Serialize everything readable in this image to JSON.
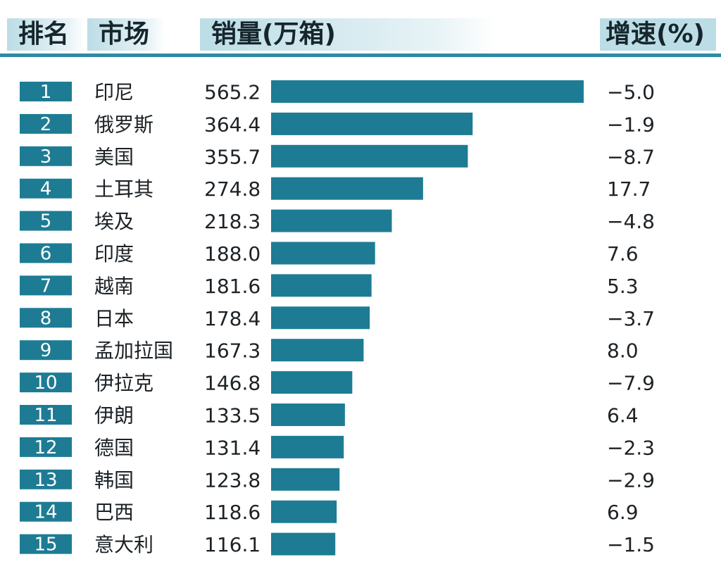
{
  "header": {
    "rank": "排名",
    "market": "市场",
    "sales": "销量(万箱)",
    "growth": "增速(%)"
  },
  "colors": {
    "bar": "#1d7c93",
    "rank_box": "#1d7c93",
    "header_band": "#bcdde6",
    "rule": "#2e8aa6"
  },
  "chart_data": {
    "type": "bar",
    "orientation": "horizontal",
    "value_range": [
      0,
      565.2
    ],
    "rows": [
      {
        "rank": "1",
        "market": "印尼",
        "sales": 565.2,
        "sales_label": "565.2",
        "growth": "−5.0"
      },
      {
        "rank": "2",
        "market": "俄罗斯",
        "sales": 364.4,
        "sales_label": "364.4",
        "growth": "−1.9"
      },
      {
        "rank": "3",
        "market": "美国",
        "sales": 355.7,
        "sales_label": "355.7",
        "growth": "−8.7"
      },
      {
        "rank": "4",
        "market": "土耳其",
        "sales": 274.8,
        "sales_label": "274.8",
        "growth": "17.7"
      },
      {
        "rank": "5",
        "market": "埃及",
        "sales": 218.3,
        "sales_label": "218.3",
        "growth": "−4.8"
      },
      {
        "rank": "6",
        "market": "印度",
        "sales": 188.0,
        "sales_label": "188.0",
        "growth": "7.6"
      },
      {
        "rank": "7",
        "market": "越南",
        "sales": 181.6,
        "sales_label": "181.6",
        "growth": "5.3"
      },
      {
        "rank": "8",
        "market": "日本",
        "sales": 178.4,
        "sales_label": "178.4",
        "growth": "−3.7"
      },
      {
        "rank": "9",
        "market": "孟加拉国",
        "sales": 167.3,
        "sales_label": "167.3",
        "growth": "8.0"
      },
      {
        "rank": "10",
        "market": "伊拉克",
        "sales": 146.8,
        "sales_label": "146.8",
        "growth": "−7.9"
      },
      {
        "rank": "11",
        "market": "伊朗",
        "sales": 133.5,
        "sales_label": "133.5",
        "growth": "6.4"
      },
      {
        "rank": "12",
        "market": "德国",
        "sales": 131.4,
        "sales_label": "131.4",
        "growth": "−2.3"
      },
      {
        "rank": "13",
        "market": "韩国",
        "sales": 123.8,
        "sales_label": "123.8",
        "growth": "−2.9"
      },
      {
        "rank": "14",
        "market": "巴西",
        "sales": 118.6,
        "sales_label": "118.6",
        "growth": "6.9"
      },
      {
        "rank": "15",
        "market": "意大利",
        "sales": 116.1,
        "sales_label": "116.1",
        "growth": "−1.5"
      }
    ]
  }
}
